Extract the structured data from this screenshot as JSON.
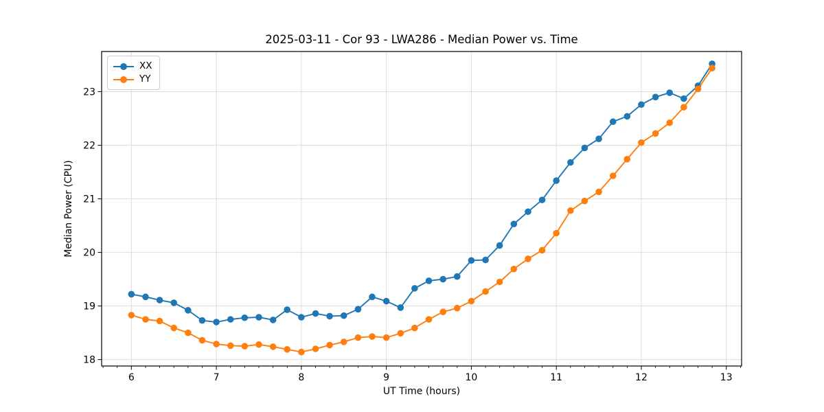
{
  "figure": {
    "title": "2025-03-11 - Cor 93 - LWA286 - Median Power vs. Time",
    "background": "#ffffff",
    "frame_color": "#000000",
    "grid_color": "#dcdcdc",
    "tick_color": "#000000"
  },
  "legend": {
    "position": "upper left",
    "entries": [
      {
        "label": "XX",
        "color": "#1f77b4"
      },
      {
        "label": "YY",
        "color": "#ff7f0e"
      }
    ]
  },
  "chart_data": {
    "type": "line",
    "title": "2025-03-11 - Cor 93 - LWA286 - Median Power vs. Time",
    "xlabel": "UT Time (hours)",
    "ylabel": "Median Power (CPU)",
    "xlim": [
      5.65,
      13.18
    ],
    "ylim": [
      17.88,
      23.75
    ],
    "x_ticks": [
      6,
      7,
      8,
      9,
      10,
      11,
      12,
      13
    ],
    "y_ticks": [
      18,
      19,
      20,
      21,
      22,
      23
    ],
    "x_minor_step": 0.16667,
    "grid": true,
    "marker": "circle",
    "x": [
      6.0,
      6.167,
      6.333,
      6.5,
      6.667,
      6.833,
      7.0,
      7.167,
      7.333,
      7.5,
      7.667,
      7.833,
      8.0,
      8.167,
      8.333,
      8.5,
      8.667,
      8.833,
      9.0,
      9.167,
      9.333,
      9.5,
      9.667,
      9.833,
      10.0,
      10.167,
      10.333,
      10.5,
      10.667,
      10.833,
      11.0,
      11.167,
      11.333,
      11.5,
      11.667,
      11.833,
      12.0,
      12.167,
      12.333,
      12.5,
      12.667,
      12.833
    ],
    "series": [
      {
        "name": "XX",
        "color": "#1f77b4",
        "values": [
          19.22,
          19.17,
          19.11,
          19.06,
          18.92,
          18.73,
          18.7,
          18.75,
          18.78,
          18.79,
          18.74,
          18.93,
          18.79,
          18.86,
          18.81,
          18.82,
          18.94,
          19.17,
          19.09,
          18.97,
          19.33,
          19.47,
          19.5,
          19.55,
          19.85,
          19.86,
          20.13,
          20.53,
          20.76,
          20.98,
          21.34,
          21.68,
          21.95,
          22.12,
          22.44,
          22.54,
          22.76,
          22.9,
          22.98,
          22.87,
          23.11,
          23.52
        ]
      },
      {
        "name": "YY",
        "color": "#ff7f0e",
        "values": [
          18.83,
          18.75,
          18.72,
          18.59,
          18.5,
          18.36,
          18.29,
          18.26,
          18.25,
          18.28,
          18.24,
          18.19,
          18.14,
          18.2,
          18.27,
          18.33,
          18.41,
          18.43,
          18.41,
          18.49,
          18.59,
          18.75,
          18.89,
          18.96,
          19.09,
          19.27,
          19.45,
          19.69,
          19.88,
          20.04,
          20.36,
          20.78,
          20.96,
          21.13,
          21.43,
          21.74,
          22.05,
          22.22,
          22.42,
          22.71,
          23.05,
          23.44
        ]
      }
    ]
  }
}
